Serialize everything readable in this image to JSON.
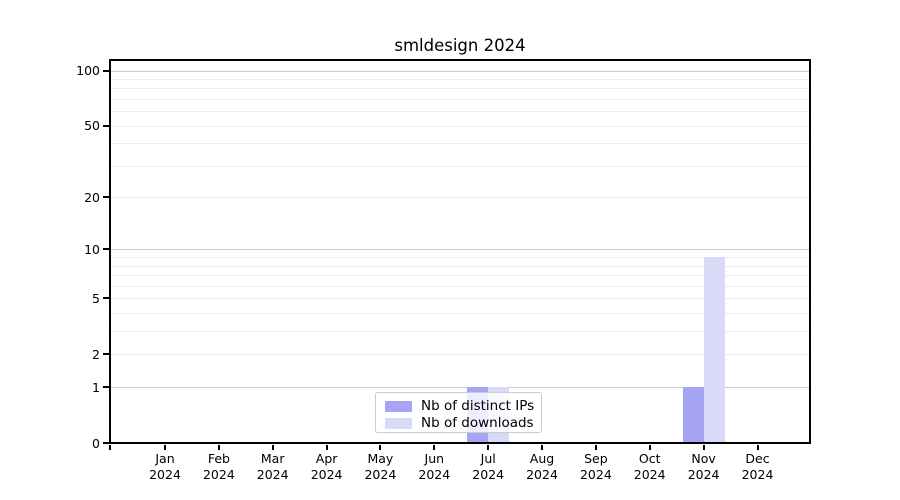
{
  "title": "smldesign 2024",
  "colors": {
    "distinct_ips": "#a5a5f3",
    "downloads": "#d9d9f8",
    "grid_major": "#c9c9c9",
    "grid_minor": "#ececec",
    "axis": "#000000",
    "background": "#ffffff"
  },
  "legend": {
    "items": [
      {
        "label": "Nb of distinct IPs",
        "color": "#a5a5f3"
      },
      {
        "label": "Nb of downloads",
        "color": "#d9d9f8"
      }
    ]
  },
  "chart_data": {
    "type": "bar",
    "title": "smldesign 2024",
    "y_scale": "log1p",
    "grid": true,
    "legend_position": "bottom-center",
    "categories": [
      "Jan",
      "Feb",
      "Mar",
      "Apr",
      "May",
      "Jun",
      "Jul",
      "Aug",
      "Sep",
      "Oct",
      "Nov",
      "Dec"
    ],
    "year_label": "2024",
    "series": [
      {
        "name": "Nb of distinct IPs",
        "color": "#a5a5f3",
        "values": [
          0,
          0,
          0,
          0,
          0,
          0,
          1,
          0,
          0,
          0,
          1,
          0
        ]
      },
      {
        "name": "Nb of downloads",
        "color": "#d9d9f8",
        "values": [
          0,
          0,
          0,
          0,
          0,
          0,
          1,
          0,
          0,
          0,
          9,
          0
        ]
      }
    ],
    "yticks": [
      0,
      1,
      2,
      5,
      10,
      20,
      50,
      100
    ],
    "major_gridlines": [
      1,
      10,
      100
    ],
    "minor_gridlines": [
      2,
      3,
      4,
      5,
      6,
      7,
      8,
      9,
      20,
      30,
      40,
      50,
      60,
      70,
      80,
      90
    ],
    "ylim": [
      0,
      114
    ],
    "xlabel": "",
    "ylabel": ""
  }
}
